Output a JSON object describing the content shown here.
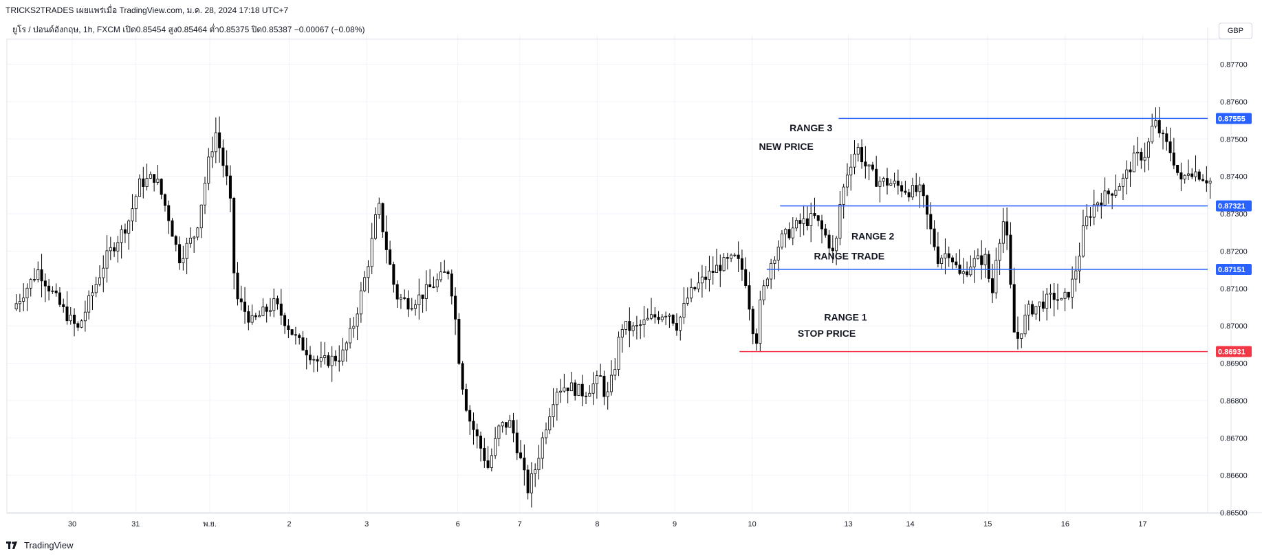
{
  "header": {
    "title": "TRICKS2TRADES เผยแพร่เมื่อ TradingView.com, ม.ค. 28, 2024 17:18 UTC+7"
  },
  "legend": {
    "text": "ยูโร / ปอนด์อังกฤษ, 1h, FXCM  เปิด0.85454  สูง0.85464  ต่ำ0.85375  ปิด0.85387  −0.00067 (−0.08%)"
  },
  "currency_button": "GBP",
  "footer": {
    "brand": "TradingView",
    "logo_icon": "tradingview-logo-icon"
  },
  "colors": {
    "candle_body_up": "#ffffff",
    "candle_body_down": "#000000",
    "candle_wick": "#000000",
    "range_line": "#2962ff",
    "stop_line": "#f23645",
    "grid": "#f0f3fa",
    "axis_text": "#131722"
  },
  "chart_data": {
    "type": "candlestick",
    "symbol": "EUR/GBP",
    "timeframe": "1h",
    "ylim": [
      0.865,
      0.8778
    ],
    "y_ticks": [
      "0.87700",
      "0.87600",
      "0.87500",
      "0.87400",
      "0.87300",
      "0.87200",
      "0.87100",
      "0.87000",
      "0.86900",
      "0.86800",
      "0.86700",
      "0.86600",
      "0.86500"
    ],
    "x_ticks": [
      {
        "label": "30",
        "pos": 0.0
      },
      {
        "label": "31",
        "pos": 0.0564
      },
      {
        "label": "พ.ย.",
        "pos": 0.1224
      },
      {
        "label": "2",
        "pos": 0.193
      },
      {
        "label": "3",
        "pos": 0.2619
      },
      {
        "label": "6",
        "pos": 0.3429
      },
      {
        "label": "7",
        "pos": 0.398
      },
      {
        "label": "8",
        "pos": 0.4669
      },
      {
        "label": "9",
        "pos": 0.5358
      },
      {
        "label": "10",
        "pos": 0.6047
      },
      {
        "label": "13",
        "pos": 0.6902
      },
      {
        "label": "14",
        "pos": 0.7453
      },
      {
        "label": "15",
        "pos": 0.8142
      },
      {
        "label": "16",
        "pos": 0.8831
      },
      {
        "label": "17",
        "pos": 0.952
      }
    ],
    "price_path": [
      {
        "t": -0.053,
        "p": 0.87045
      },
      {
        "t": -0.03,
        "p": 0.8715
      },
      {
        "t": -0.01,
        "p": 0.8705
      },
      {
        "t": 0.005,
        "p": 0.8699
      },
      {
        "t": 0.03,
        "p": 0.8718
      },
      {
        "t": 0.05,
        "p": 0.8728
      },
      {
        "t": 0.06,
        "p": 0.8738
      },
      {
        "t": 0.074,
        "p": 0.874
      },
      {
        "t": 0.085,
        "p": 0.873
      },
      {
        "t": 0.095,
        "p": 0.8718
      },
      {
        "t": 0.11,
        "p": 0.8725
      },
      {
        "t": 0.122,
        "p": 0.8745
      },
      {
        "t": 0.128,
        "p": 0.8752
      },
      {
        "t": 0.135,
        "p": 0.8742
      },
      {
        "t": 0.14,
        "p": 0.8736
      },
      {
        "t": 0.145,
        "p": 0.8708
      },
      {
        "t": 0.16,
        "p": 0.8701
      },
      {
        "t": 0.18,
        "p": 0.8706
      },
      {
        "t": 0.2,
        "p": 0.8696
      },
      {
        "t": 0.22,
        "p": 0.869
      },
      {
        "t": 0.24,
        "p": 0.8692
      },
      {
        "t": 0.25,
        "p": 0.87
      },
      {
        "t": 0.262,
        "p": 0.8715
      },
      {
        "t": 0.268,
        "p": 0.8725
      },
      {
        "t": 0.272,
        "p": 0.8733
      },
      {
        "t": 0.278,
        "p": 0.8723
      },
      {
        "t": 0.288,
        "p": 0.8708
      },
      {
        "t": 0.3,
        "p": 0.8706
      },
      {
        "t": 0.31,
        "p": 0.8708
      },
      {
        "t": 0.325,
        "p": 0.8712
      },
      {
        "t": 0.335,
        "p": 0.8715
      },
      {
        "t": 0.34,
        "p": 0.8704
      },
      {
        "t": 0.345,
        "p": 0.8688
      },
      {
        "t": 0.352,
        "p": 0.8676
      },
      {
        "t": 0.36,
        "p": 0.867
      },
      {
        "t": 0.37,
        "p": 0.8662
      },
      {
        "t": 0.38,
        "p": 0.8673
      },
      {
        "t": 0.39,
        "p": 0.8674
      },
      {
        "t": 0.398,
        "p": 0.8665
      },
      {
        "t": 0.405,
        "p": 0.8656
      },
      {
        "t": 0.412,
        "p": 0.8662
      },
      {
        "t": 0.42,
        "p": 0.8672
      },
      {
        "t": 0.43,
        "p": 0.8683
      },
      {
        "t": 0.44,
        "p": 0.8684
      },
      {
        "t": 0.455,
        "p": 0.8682
      },
      {
        "t": 0.47,
        "p": 0.8686
      },
      {
        "t": 0.475,
        "p": 0.868
      },
      {
        "t": 0.482,
        "p": 0.8688
      },
      {
        "t": 0.488,
        "p": 0.87
      },
      {
        "t": 0.5,
        "p": 0.8699
      },
      {
        "t": 0.515,
        "p": 0.8702
      },
      {
        "t": 0.53,
        "p": 0.8704
      },
      {
        "t": 0.538,
        "p": 0.87
      },
      {
        "t": 0.548,
        "p": 0.8708
      },
      {
        "t": 0.56,
        "p": 0.8712
      },
      {
        "t": 0.575,
        "p": 0.8716
      },
      {
        "t": 0.59,
        "p": 0.8718
      },
      {
        "t": 0.598,
        "p": 0.8714
      },
      {
        "t": 0.604,
        "p": 0.8702
      },
      {
        "t": 0.608,
        "p": 0.8695
      },
      {
        "t": 0.612,
        "p": 0.8706
      },
      {
        "t": 0.62,
        "p": 0.8716
      },
      {
        "t": 0.63,
        "p": 0.8723
      },
      {
        "t": 0.645,
        "p": 0.8727
      },
      {
        "t": 0.66,
        "p": 0.8729
      },
      {
        "t": 0.672,
        "p": 0.8723
      },
      {
        "t": 0.678,
        "p": 0.8718
      },
      {
        "t": 0.683,
        "p": 0.8733
      },
      {
        "t": 0.69,
        "p": 0.8742
      },
      {
        "t": 0.698,
        "p": 0.8748
      },
      {
        "t": 0.705,
        "p": 0.8743
      },
      {
        "t": 0.715,
        "p": 0.8739
      },
      {
        "t": 0.73,
        "p": 0.8738
      },
      {
        "t": 0.745,
        "p": 0.8736
      },
      {
        "t": 0.755,
        "p": 0.8736
      },
      {
        "t": 0.762,
        "p": 0.8727
      },
      {
        "t": 0.77,
        "p": 0.8718
      },
      {
        "t": 0.78,
        "p": 0.872
      },
      {
        "t": 0.79,
        "p": 0.8713
      },
      {
        "t": 0.8,
        "p": 0.8717
      },
      {
        "t": 0.812,
        "p": 0.8718
      },
      {
        "t": 0.818,
        "p": 0.8708
      },
      {
        "t": 0.822,
        "p": 0.872
      },
      {
        "t": 0.828,
        "p": 0.8728
      },
      {
        "t": 0.833,
        "p": 0.872
      },
      {
        "t": 0.836,
        "p": 0.87
      },
      {
        "t": 0.84,
        "p": 0.8696
      },
      {
        "t": 0.85,
        "p": 0.8704
      },
      {
        "t": 0.862,
        "p": 0.8706
      },
      {
        "t": 0.874,
        "p": 0.8708
      },
      {
        "t": 0.88,
        "p": 0.8706
      },
      {
        "t": 0.888,
        "p": 0.871
      },
      {
        "t": 0.895,
        "p": 0.8718
      },
      {
        "t": 0.9,
        "p": 0.8727
      },
      {
        "t": 0.91,
        "p": 0.8733
      },
      {
        "t": 0.92,
        "p": 0.8735
      },
      {
        "t": 0.935,
        "p": 0.8739
      },
      {
        "t": 0.945,
        "p": 0.8745
      },
      {
        "t": 0.955,
        "p": 0.8746
      },
      {
        "t": 0.962,
        "p": 0.8755
      },
      {
        "t": 0.97,
        "p": 0.875
      },
      {
        "t": 0.978,
        "p": 0.8746
      },
      {
        "t": 0.986,
        "p": 0.8738
      },
      {
        "t": 0.993,
        "p": 0.8742
      },
      {
        "t": 1.0,
        "p": 0.8741
      },
      {
        "t": 1.012,
        "p": 0.87387
      }
    ],
    "levels": [
      {
        "name": "range-3-top",
        "price": 0.87555,
        "label": "0.87555",
        "color": "#2962ff",
        "start_pos": 0.6816
      },
      {
        "name": "range-2-top",
        "price": 0.87321,
        "label": "0.87321",
        "color": "#2962ff",
        "start_pos": 0.6295
      },
      {
        "name": "range-1-top",
        "price": 0.87151,
        "label": "0.87151",
        "color": "#2962ff",
        "start_pos": 0.6176
      },
      {
        "name": "stop-level",
        "price": 0.86931,
        "label": "0.86931",
        "color": "#f23645",
        "start_pos": 0.5934
      }
    ],
    "annotations": [
      {
        "name": "range-3-label",
        "text": "RANGE 3",
        "pos": 0.657,
        "price": 0.8753
      },
      {
        "name": "new-price-label",
        "text": "NEW PRICE",
        "pos": 0.635,
        "price": 0.8748
      },
      {
        "name": "range-2-label",
        "text": "RANGE 2",
        "pos": 0.712,
        "price": 0.8724
      },
      {
        "name": "range-trade-label",
        "text": "RANGE TRADE",
        "pos": 0.691,
        "price": 0.87187
      },
      {
        "name": "range-1-label",
        "text": "RANGE 1",
        "pos": 0.6878,
        "price": 0.87023
      },
      {
        "name": "stop-price-label",
        "text": "STOP PRICE",
        "pos": 0.671,
        "price": 0.8698
      }
    ]
  }
}
